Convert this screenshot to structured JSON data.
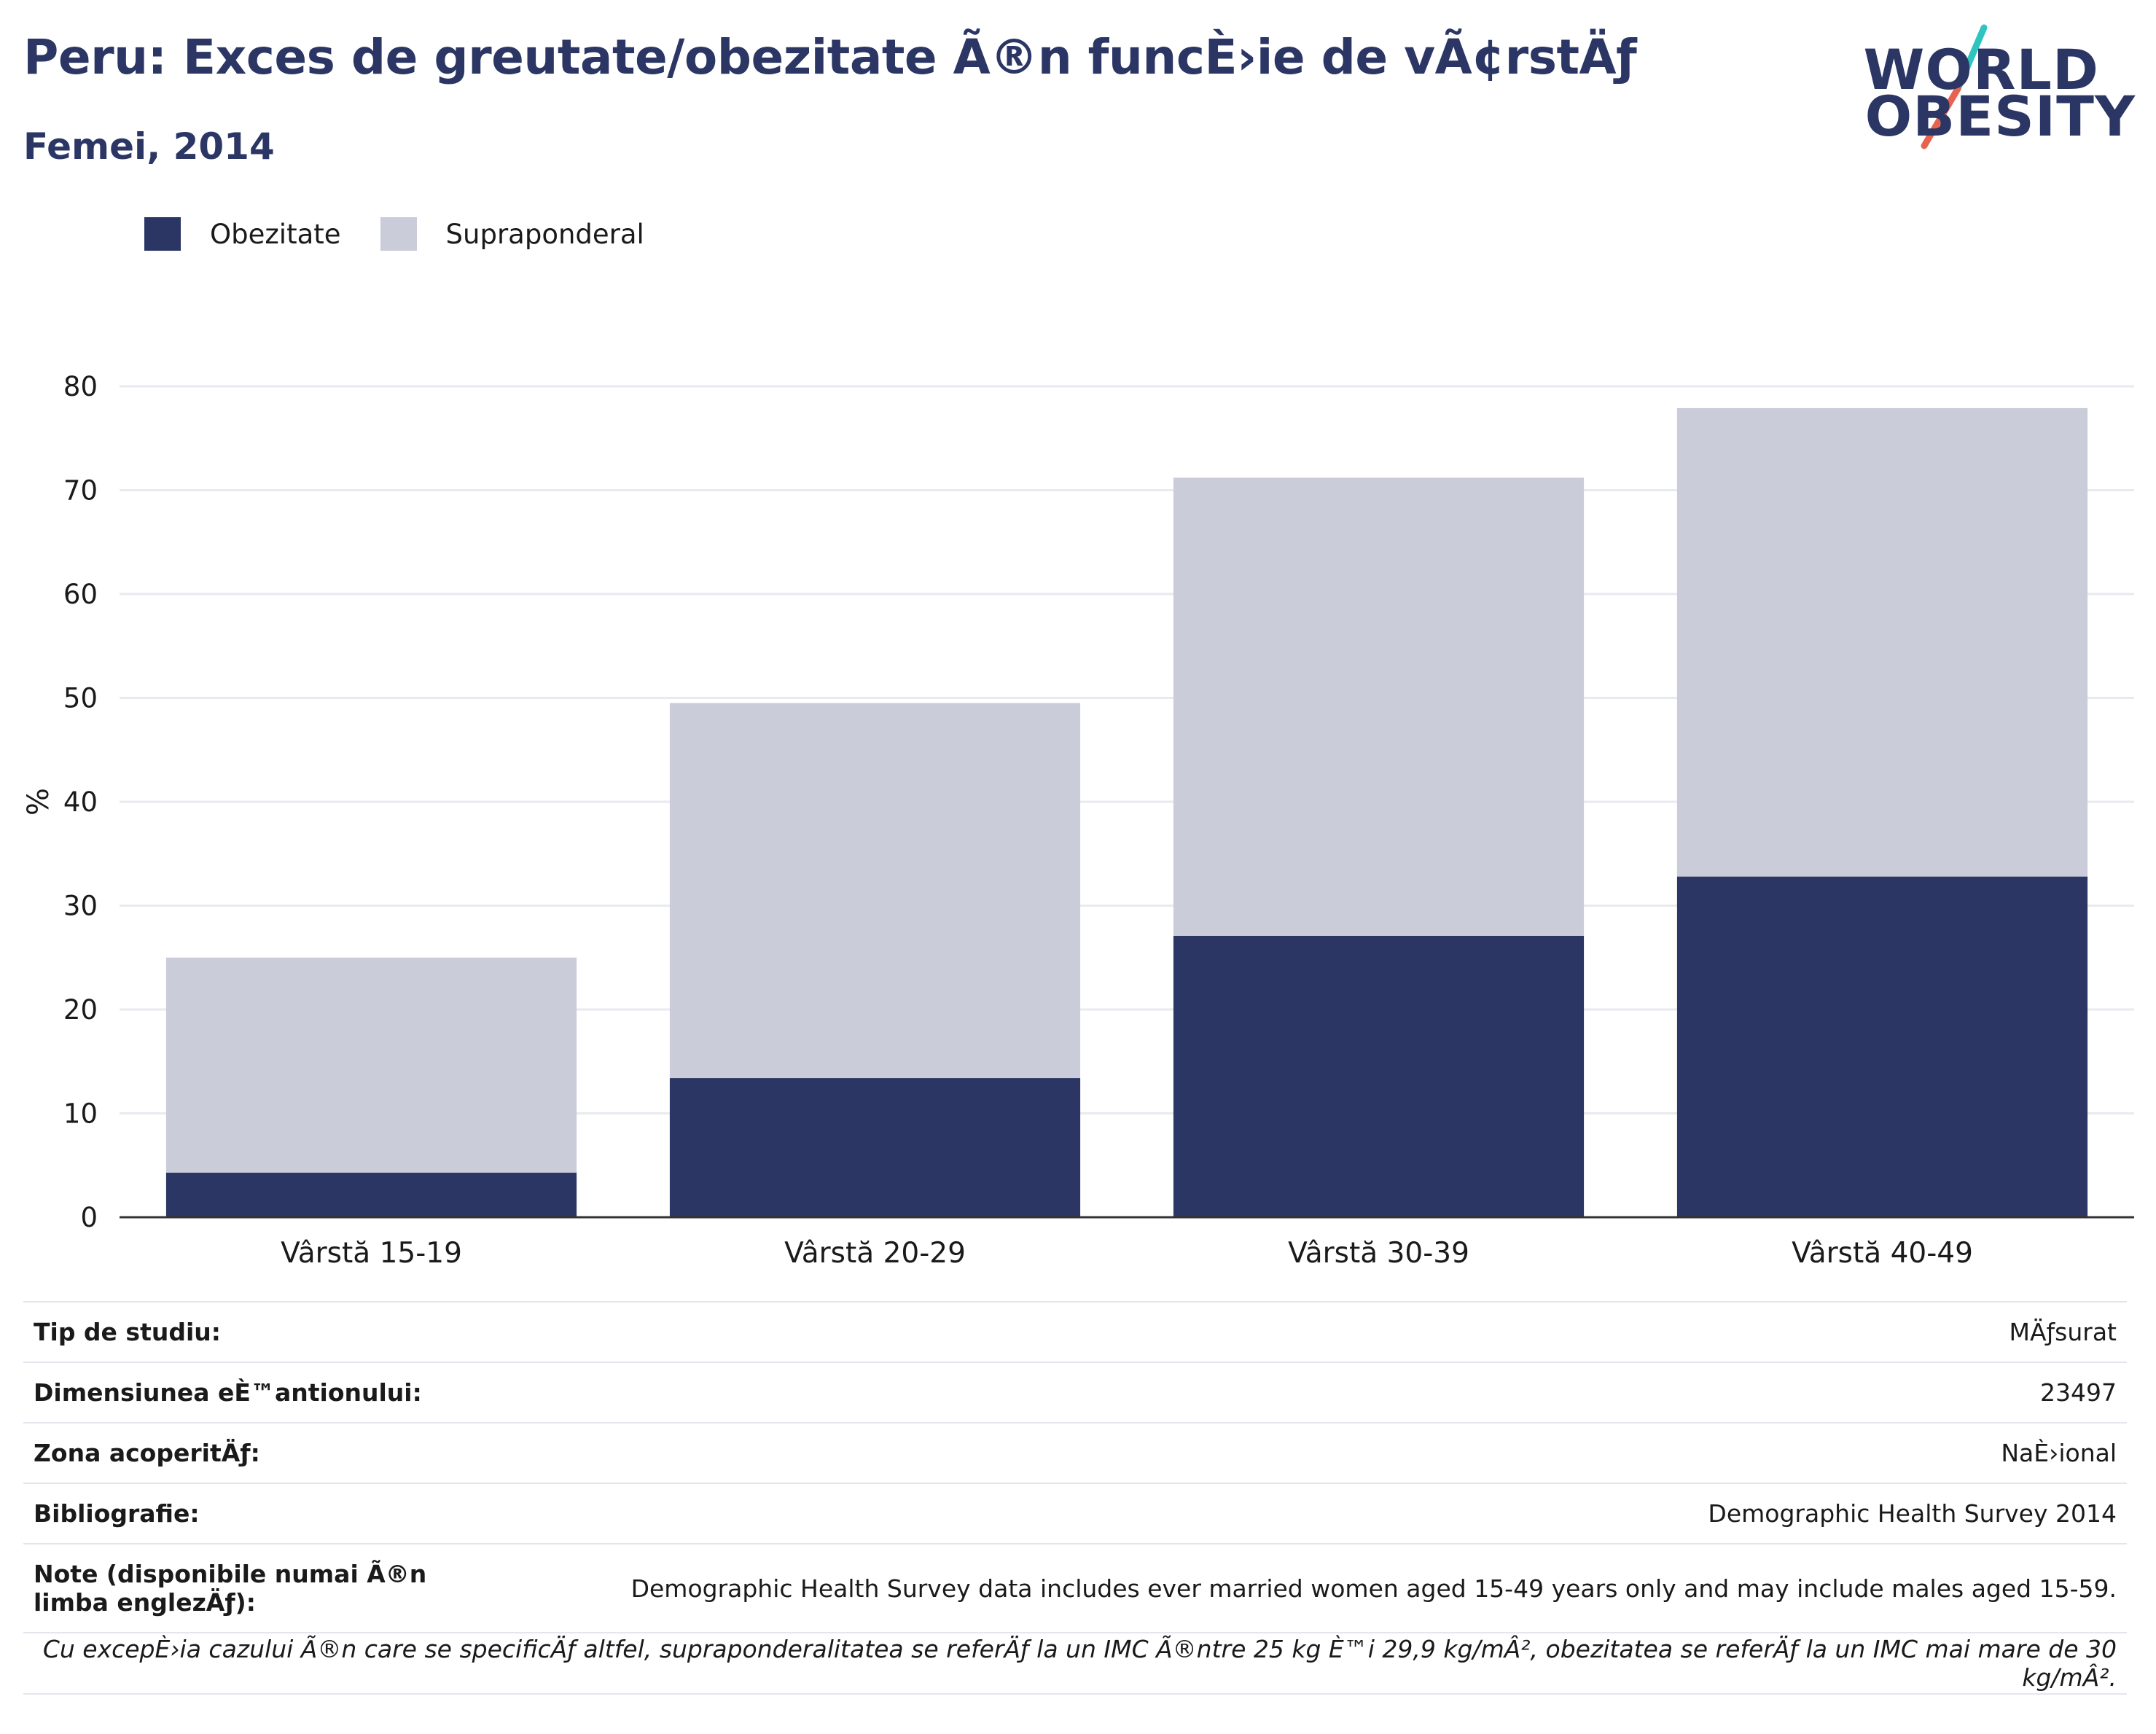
{
  "header": {
    "title": "Peru: Exces de greutate/obezitate Ã®n funcÈ›ie de vÃ¢rstÄƒ",
    "subtitle": "Femei, 2014"
  },
  "logo": {
    "line1": "WORLD",
    "line2": "OBESITY",
    "slash_colors": [
      "#2ec4c0",
      "#e8634f"
    ]
  },
  "legend": [
    {
      "label": "Obezitate",
      "color": "#2b3665"
    },
    {
      "label": "Supraponderal",
      "color": "#cacdd9"
    }
  ],
  "chart_data": {
    "type": "bar",
    "stacked": true,
    "categories": [
      "Vârstă 15-19",
      "Vârstă 20-29",
      "Vârstă 30-39",
      "Vârstă 40-49"
    ],
    "series": [
      {
        "name": "Obezitate",
        "values": [
          4.3,
          13.4,
          27.1,
          32.8
        ],
        "color": "#2b3665"
      },
      {
        "name": "Supraponderal",
        "values": [
          20.7,
          36.1,
          44.1,
          45.1
        ],
        "color": "#cacdd9"
      }
    ],
    "ylabel": "%",
    "ylim": [
      0,
      80
    ],
    "yticks": [
      0,
      10,
      20,
      30,
      40,
      50,
      60,
      70,
      80
    ],
    "grid": true
  },
  "meta": {
    "rows": [
      {
        "key": "Tip de studiu:",
        "value": "MÄƒsurat"
      },
      {
        "key": "Dimensiunea eÈ™antionului:",
        "value": "23497"
      },
      {
        "key": "Zona acoperitÄƒ:",
        "value": "NaÈ›ional"
      },
      {
        "key": "Bibliografie:",
        "value": "Demographic Health Survey 2014"
      }
    ],
    "note_key": "Note (disponibile numai Ã®n limba englezÄƒ):",
    "note_value": "Demographic Health Survey data includes ever married women aged 15-49 years only and may include males aged 15-59.",
    "footnote": "Cu excepÈ›ia cazului Ã®n care se specificÄƒ altfel, supraponderalitatea se referÄƒ la un IMC Ã®ntre 25 kg È™i 29,9 kg/mÂ², obezitatea se referÄƒ la un IMC mai mare de 30 kg/mÂ²."
  }
}
